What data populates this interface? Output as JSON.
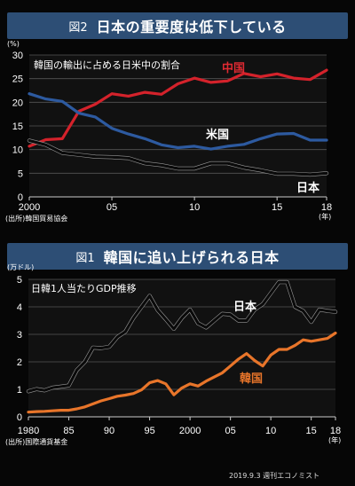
{
  "charts": [
    {
      "fig_label": "図2",
      "title": "日本の重要度は低下している",
      "unit": "(%)",
      "subtitle": "韓国の輸出に占める日米中の割合",
      "source": "(出所)韓国貿易協会",
      "x_tick_labels": [
        "2000",
        "05",
        "10",
        "15",
        "18"
      ],
      "x_unit": "(年)"
    },
    {
      "fig_label": "図1",
      "title": "韓国に追い上げられる日本",
      "unit": "(万ドル)",
      "subtitle": "日韓1人当たりGDP推移",
      "source": "(出所)国際通貨基金",
      "x_tick_labels": [
        "1980",
        "85",
        "90",
        "95",
        "2000",
        "05",
        "10",
        "15",
        "18"
      ],
      "x_unit": "(年)"
    }
  ],
  "credit": "2019.9.3 週刊エコノミスト",
  "chart_data": [
    {
      "type": "line",
      "title": "韓国の輸出に占める日米中の割合",
      "ylabel": "(%)",
      "xlabel": "(年)",
      "x": [
        2000,
        2001,
        2002,
        2003,
        2004,
        2005,
        2006,
        2007,
        2008,
        2009,
        2010,
        2011,
        2012,
        2013,
        2014,
        2015,
        2016,
        2017,
        2018
      ],
      "xlim": [
        2000,
        2018
      ],
      "ylim": [
        0,
        30
      ],
      "yticks": [
        0,
        5,
        10,
        15,
        20,
        25,
        30
      ],
      "grid": true,
      "series": [
        {
          "name": "中国",
          "color": "#d4222b",
          "values": [
            10.7,
            12.1,
            12.3,
            18.1,
            19.6,
            21.8,
            21.3,
            22.1,
            21.7,
            23.9,
            25.1,
            24.2,
            24.5,
            26.1,
            25.4,
            26.0,
            25.1,
            24.8,
            26.8
          ]
        },
        {
          "name": "米国",
          "color": "#2d5aa0",
          "values": [
            21.8,
            20.7,
            20.2,
            17.7,
            16.9,
            14.5,
            13.3,
            12.3,
            11.0,
            10.4,
            10.7,
            10.1,
            10.7,
            11.1,
            12.3,
            13.3,
            13.4,
            12.0,
            12.0
          ]
        },
        {
          "name": "日本",
          "color": "#111111",
          "values": [
            11.9,
            11.0,
            9.3,
            8.9,
            8.5,
            8.4,
            8.2,
            7.1,
            6.7,
            6.0,
            6.0,
            7.1,
            7.1,
            6.2,
            5.6,
            4.9,
            4.9,
            4.7,
            5.0
          ]
        }
      ]
    },
    {
      "type": "line",
      "title": "日韓1人当たりGDP推移",
      "ylabel": "(万ドル)",
      "xlabel": "(年)",
      "x": [
        1980,
        1981,
        1982,
        1983,
        1984,
        1985,
        1986,
        1987,
        1988,
        1989,
        1990,
        1991,
        1992,
        1993,
        1994,
        1995,
        1996,
        1997,
        1998,
        1999,
        2000,
        2001,
        2002,
        2003,
        2004,
        2005,
        2006,
        2007,
        2008,
        2009,
        2010,
        2011,
        2012,
        2013,
        2014,
        2015,
        2016,
        2017,
        2018
      ],
      "xlim": [
        1980,
        2018
      ],
      "ylim": [
        0,
        5
      ],
      "yticks": [
        0,
        1,
        2,
        3,
        4,
        5
      ],
      "grid": true,
      "series": [
        {
          "name": "日本",
          "color": "#111111",
          "values": [
            0.93,
            1.01,
            0.96,
            1.06,
            1.1,
            1.14,
            1.7,
            2.0,
            2.52,
            2.5,
            2.55,
            2.9,
            3.1,
            3.6,
            4.0,
            4.4,
            3.88,
            3.55,
            3.2,
            3.6,
            3.9,
            3.4,
            3.25,
            3.5,
            3.75,
            3.72,
            3.5,
            3.5,
            3.9,
            4.1,
            4.5,
            4.9,
            4.9,
            4.0,
            3.85,
            3.45,
            3.9,
            3.85,
            3.82
          ]
        },
        {
          "name": "韓国",
          "color": "#e8752a",
          "values": [
            0.17,
            0.19,
            0.2,
            0.22,
            0.24,
            0.24,
            0.29,
            0.36,
            0.47,
            0.58,
            0.66,
            0.75,
            0.79,
            0.85,
            0.98,
            1.24,
            1.32,
            1.2,
            0.8,
            1.05,
            1.2,
            1.12,
            1.3,
            1.45,
            1.6,
            1.85,
            2.1,
            2.3,
            2.05,
            1.85,
            2.25,
            2.45,
            2.45,
            2.6,
            2.8,
            2.75,
            2.8,
            2.85,
            3.05
          ]
        }
      ]
    }
  ]
}
